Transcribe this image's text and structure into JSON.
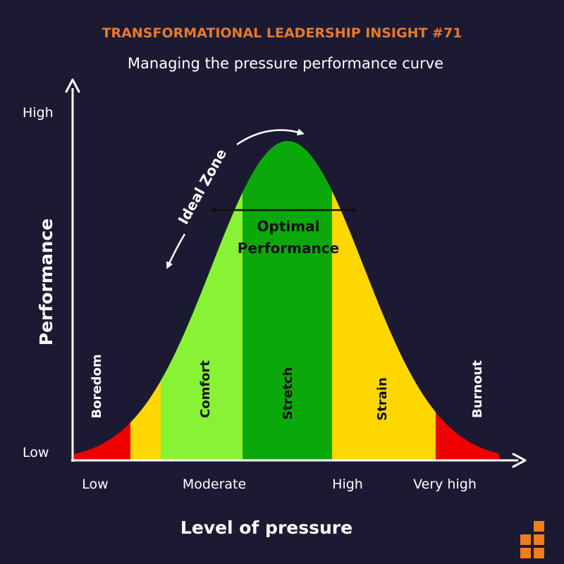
{
  "header": {
    "title": "TRANSFORMATIONAL LEADERSHIP INSIGHT #71",
    "subtitle": "Managing the pressure performance curve"
  },
  "axes": {
    "y_label": "Performance",
    "y_high": "High",
    "y_low": "Low",
    "x_label": "Level of pressure",
    "x_ticks": [
      "Low",
      "Moderate",
      "High",
      "Very high"
    ]
  },
  "zones": [
    {
      "label": "Boredom",
      "color": "#f00000"
    },
    {
      "label": "Comfort",
      "color": "#88f334"
    },
    {
      "label": "Stretch",
      "color": "#0ba80b"
    },
    {
      "label": "Strain",
      "color": "#fed700"
    },
    {
      "label": "Burnout",
      "color": "#f00000"
    }
  ],
  "annotations": {
    "ideal_zone": "Ideal Zone",
    "optimal_line1": "Optimal",
    "optimal_line2": "Performance"
  },
  "colors": {
    "background": "#1c1a33",
    "title": "#e8792a",
    "text": "#ffffff",
    "yellow": "#fed700",
    "logo": "#ee7d1e"
  },
  "logo_icon": "stacked-squares-logo-icon"
}
